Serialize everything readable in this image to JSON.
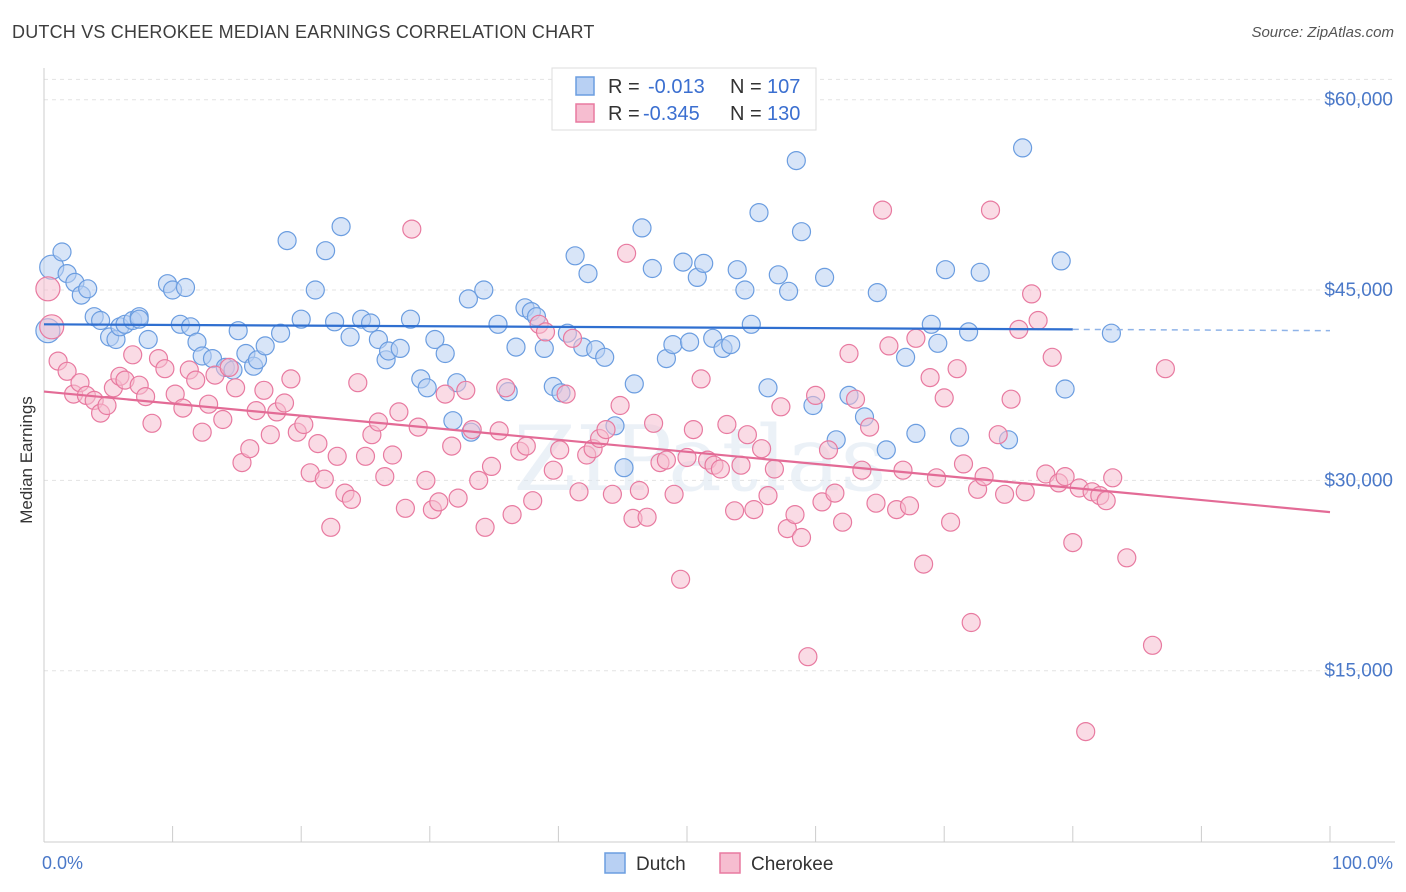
{
  "title": "DUTCH VS CHEROKEE MEDIAN EARNINGS CORRELATION CHART",
  "source": "Source: ZipAtlas.com",
  "watermark": "ZIPatlas",
  "chart_data": {
    "type": "scatter",
    "title": "DUTCH VS CHEROKEE MEDIAN EARNINGS CORRELATION CHART",
    "xlabel": "",
    "ylabel": "Median Earnings",
    "xlim": [
      0,
      100
    ],
    "ylim": [
      1500,
      62500
    ],
    "x_tick_labels": [
      "0.0%",
      "100.0%"
    ],
    "y_ticks": [
      15000,
      30000,
      45000,
      60000
    ],
    "y_tick_labels": [
      "$15,000",
      "$30,000",
      "$45,000",
      "$60,000"
    ],
    "grid": true,
    "legend_position": "top-center",
    "stats_legend": [
      {
        "r_label": "R =",
        "r_value": "-0.013",
        "n_label": "N =",
        "n_value": "107"
      },
      {
        "r_label": "R =",
        "r_value": "-0.345",
        "n_label": "N =",
        "n_value": "130"
      }
    ],
    "series": [
      {
        "name": "Dutch",
        "color": "#6b9de0",
        "fill": "#b8d0f3",
        "trend": {
          "x": [
            0,
            80
          ],
          "y": [
            42300,
            41900
          ],
          "dashed_to": 100
        },
        "points": [
          [
            0.3,
            41800
          ],
          [
            0.6,
            46800
          ],
          [
            1.4,
            48000
          ],
          [
            1.8,
            46300
          ],
          [
            2.4,
            45600
          ],
          [
            2.9,
            44600
          ],
          [
            3.4,
            45100
          ],
          [
            3.9,
            42900
          ],
          [
            4.4,
            42600
          ],
          [
            5.1,
            41300
          ],
          [
            5.6,
            41100
          ],
          [
            5.9,
            42100
          ],
          [
            6.3,
            42300
          ],
          [
            6.9,
            42600
          ],
          [
            7.4,
            42900
          ],
          [
            7.4,
            42700
          ],
          [
            8.1,
            41100
          ],
          [
            9.6,
            45500
          ],
          [
            10.0,
            45000
          ],
          [
            10.6,
            42300
          ],
          [
            11.0,
            45200
          ],
          [
            11.4,
            42100
          ],
          [
            11.9,
            40900
          ],
          [
            12.3,
            39800
          ],
          [
            13.1,
            39600
          ],
          [
            14.1,
            38900
          ],
          [
            14.7,
            38700
          ],
          [
            15.1,
            41800
          ],
          [
            15.7,
            40000
          ],
          [
            16.3,
            39000
          ],
          [
            16.6,
            39500
          ],
          [
            17.2,
            40600
          ],
          [
            18.4,
            41600
          ],
          [
            18.9,
            48900
          ],
          [
            20.0,
            42700
          ],
          [
            21.1,
            45000
          ],
          [
            21.9,
            48100
          ],
          [
            22.6,
            42500
          ],
          [
            23.1,
            50000
          ],
          [
            23.8,
            41300
          ],
          [
            24.7,
            42700
          ],
          [
            25.4,
            42400
          ],
          [
            26.0,
            41100
          ],
          [
            26.6,
            39500
          ],
          [
            26.8,
            40200
          ],
          [
            27.7,
            40400
          ],
          [
            28.5,
            42700
          ],
          [
            29.3,
            38000
          ],
          [
            29.8,
            37300
          ],
          [
            30.4,
            41100
          ],
          [
            31.2,
            40000
          ],
          [
            31.8,
            34700
          ],
          [
            32.1,
            37700
          ],
          [
            33.0,
            44300
          ],
          [
            33.2,
            33800
          ],
          [
            34.2,
            45000
          ],
          [
            35.3,
            42300
          ],
          [
            36.1,
            37000
          ],
          [
            36.7,
            40500
          ],
          [
            37.4,
            43600
          ],
          [
            37.9,
            43300
          ],
          [
            38.3,
            42900
          ],
          [
            38.9,
            40400
          ],
          [
            39.6,
            37400
          ],
          [
            40.2,
            36900
          ],
          [
            40.7,
            41600
          ],
          [
            41.3,
            47700
          ],
          [
            41.9,
            40500
          ],
          [
            42.3,
            46300
          ],
          [
            42.9,
            40300
          ],
          [
            43.6,
            39700
          ],
          [
            44.4,
            34300
          ],
          [
            45.1,
            31000
          ],
          [
            45.9,
            37600
          ],
          [
            46.5,
            49900
          ],
          [
            47.3,
            46700
          ],
          [
            48.4,
            39600
          ],
          [
            48.9,
            40700
          ],
          [
            49.7,
            47200
          ],
          [
            50.2,
            40900
          ],
          [
            50.8,
            46000
          ],
          [
            51.3,
            47100
          ],
          [
            52.0,
            41200
          ],
          [
            52.8,
            40400
          ],
          [
            53.4,
            40700
          ],
          [
            53.9,
            46600
          ],
          [
            54.5,
            45000
          ],
          [
            55.0,
            42300
          ],
          [
            55.6,
            51100
          ],
          [
            56.3,
            37300
          ],
          [
            57.1,
            46200
          ],
          [
            57.9,
            44900
          ],
          [
            58.5,
            55200
          ],
          [
            58.9,
            49600
          ],
          [
            59.8,
            35900
          ],
          [
            60.7,
            46000
          ],
          [
            61.6,
            33200
          ],
          [
            62.6,
            36700
          ],
          [
            63.8,
            35000
          ],
          [
            64.8,
            44800
          ],
          [
            65.5,
            32400
          ],
          [
            67.0,
            39700
          ],
          [
            67.8,
            33700
          ],
          [
            69.0,
            42300
          ],
          [
            69.5,
            40800
          ],
          [
            70.1,
            46600
          ],
          [
            71.2,
            33400
          ],
          [
            71.9,
            41700
          ],
          [
            72.8,
            46400
          ],
          [
            75.0,
            33200
          ],
          [
            76.1,
            56200
          ],
          [
            79.1,
            47300
          ],
          [
            79.4,
            37200
          ],
          [
            83.0,
            41600
          ]
        ]
      },
      {
        "name": "Cherokee",
        "color": "#e87aa0",
        "fill": "#f6bdd0",
        "trend": {
          "x": [
            0,
            100
          ],
          "y": [
            37000,
            27500
          ]
        },
        "points": [
          [
            0.3,
            45100
          ],
          [
            0.6,
            42100
          ],
          [
            1.1,
            39400
          ],
          [
            1.8,
            38600
          ],
          [
            2.3,
            36800
          ],
          [
            2.8,
            37700
          ],
          [
            3.3,
            36700
          ],
          [
            3.9,
            36300
          ],
          [
            4.4,
            35300
          ],
          [
            4.9,
            35900
          ],
          [
            5.4,
            37300
          ],
          [
            5.9,
            38200
          ],
          [
            6.3,
            37900
          ],
          [
            6.9,
            39900
          ],
          [
            7.4,
            37500
          ],
          [
            7.9,
            36600
          ],
          [
            8.4,
            34500
          ],
          [
            8.9,
            39600
          ],
          [
            9.4,
            38800
          ],
          [
            10.2,
            36800
          ],
          [
            10.8,
            35700
          ],
          [
            11.3,
            38700
          ],
          [
            11.8,
            37900
          ],
          [
            12.3,
            33800
          ],
          [
            12.8,
            36000
          ],
          [
            13.3,
            38300
          ],
          [
            13.9,
            34800
          ],
          [
            14.4,
            38900
          ],
          [
            14.9,
            37300
          ],
          [
            15.4,
            31400
          ],
          [
            16.0,
            32500
          ],
          [
            16.5,
            35500
          ],
          [
            17.1,
            37100
          ],
          [
            17.6,
            33600
          ],
          [
            18.1,
            35400
          ],
          [
            18.7,
            36100
          ],
          [
            19.2,
            38000
          ],
          [
            19.7,
            33800
          ],
          [
            20.2,
            34400
          ],
          [
            20.7,
            30600
          ],
          [
            21.3,
            32900
          ],
          [
            21.8,
            30100
          ],
          [
            22.3,
            26300
          ],
          [
            22.8,
            31900
          ],
          [
            23.4,
            29000
          ],
          [
            23.9,
            28500
          ],
          [
            24.4,
            37700
          ],
          [
            25.0,
            31900
          ],
          [
            25.5,
            33600
          ],
          [
            26.0,
            34600
          ],
          [
            26.5,
            30300
          ],
          [
            27.1,
            32000
          ],
          [
            27.6,
            35400
          ],
          [
            28.1,
            27800
          ],
          [
            28.6,
            49800
          ],
          [
            29.1,
            34200
          ],
          [
            29.7,
            30000
          ],
          [
            30.2,
            27700
          ],
          [
            30.7,
            28300
          ],
          [
            31.2,
            36800
          ],
          [
            31.7,
            32700
          ],
          [
            32.2,
            28600
          ],
          [
            32.8,
            37100
          ],
          [
            33.3,
            34000
          ],
          [
            33.8,
            30000
          ],
          [
            34.3,
            26300
          ],
          [
            34.8,
            31100
          ],
          [
            35.4,
            33900
          ],
          [
            35.9,
            37300
          ],
          [
            36.4,
            27300
          ],
          [
            37.0,
            32300
          ],
          [
            37.5,
            32700
          ],
          [
            38.0,
            28400
          ],
          [
            38.5,
            42300
          ],
          [
            39.0,
            41700
          ],
          [
            39.6,
            30800
          ],
          [
            40.1,
            32400
          ],
          [
            40.6,
            36800
          ],
          [
            41.1,
            41200
          ],
          [
            41.6,
            29100
          ],
          [
            42.2,
            32000
          ],
          [
            42.7,
            32500
          ],
          [
            43.2,
            33300
          ],
          [
            43.7,
            34000
          ],
          [
            44.2,
            28900
          ],
          [
            44.8,
            35900
          ],
          [
            45.3,
            47900
          ],
          [
            45.8,
            27000
          ],
          [
            46.3,
            29200
          ],
          [
            46.9,
            27100
          ],
          [
            47.4,
            34500
          ],
          [
            47.9,
            31400
          ],
          [
            48.4,
            31600
          ],
          [
            49.0,
            28900
          ],
          [
            49.5,
            22200
          ],
          [
            50.0,
            31800
          ],
          [
            50.5,
            34000
          ],
          [
            51.1,
            38000
          ],
          [
            51.6,
            31600
          ],
          [
            52.1,
            31200
          ],
          [
            52.6,
            30900
          ],
          [
            53.1,
            34400
          ],
          [
            53.7,
            27600
          ],
          [
            54.2,
            31200
          ],
          [
            54.7,
            33600
          ],
          [
            55.2,
            27700
          ],
          [
            55.8,
            32500
          ],
          [
            56.3,
            28800
          ],
          [
            56.8,
            30900
          ],
          [
            57.3,
            35800
          ],
          [
            57.8,
            26200
          ],
          [
            58.4,
            27300
          ],
          [
            58.9,
            25500
          ],
          [
            59.4,
            16100
          ],
          [
            60.0,
            36700
          ],
          [
            60.5,
            28300
          ],
          [
            61.0,
            32400
          ],
          [
            61.5,
            29000
          ],
          [
            62.1,
            26700
          ],
          [
            62.6,
            40000
          ],
          [
            63.1,
            36400
          ],
          [
            63.6,
            30800
          ],
          [
            64.2,
            34200
          ],
          [
            64.7,
            28200
          ],
          [
            65.2,
            51300
          ],
          [
            65.7,
            40600
          ],
          [
            66.3,
            27700
          ],
          [
            66.8,
            30800
          ],
          [
            67.3,
            28000
          ],
          [
            67.8,
            41200
          ],
          [
            68.4,
            23400
          ],
          [
            68.9,
            38100
          ],
          [
            69.4,
            30200
          ],
          [
            70.0,
            36500
          ],
          [
            70.5,
            26700
          ],
          [
            71.0,
            38800
          ],
          [
            71.5,
            31300
          ],
          [
            72.1,
            18800
          ],
          [
            72.6,
            29300
          ],
          [
            73.1,
            30300
          ],
          [
            73.6,
            51300
          ],
          [
            74.2,
            33600
          ],
          [
            74.7,
            28900
          ],
          [
            75.2,
            36400
          ],
          [
            75.8,
            41900
          ],
          [
            76.3,
            29100
          ],
          [
            76.8,
            44700
          ],
          [
            77.3,
            42600
          ],
          [
            77.9,
            30500
          ],
          [
            78.4,
            39700
          ],
          [
            78.9,
            29800
          ],
          [
            79.4,
            30300
          ],
          [
            80.0,
            25100
          ],
          [
            80.5,
            29400
          ],
          [
            81.0,
            10200
          ],
          [
            81.5,
            29100
          ],
          [
            82.1,
            28800
          ],
          [
            82.6,
            28400
          ],
          [
            83.1,
            30200
          ],
          [
            84.2,
            23900
          ],
          [
            86.2,
            17000
          ],
          [
            87.2,
            38800
          ]
        ]
      }
    ]
  },
  "legend": {
    "items": [
      "Dutch",
      "Cherokee"
    ]
  }
}
